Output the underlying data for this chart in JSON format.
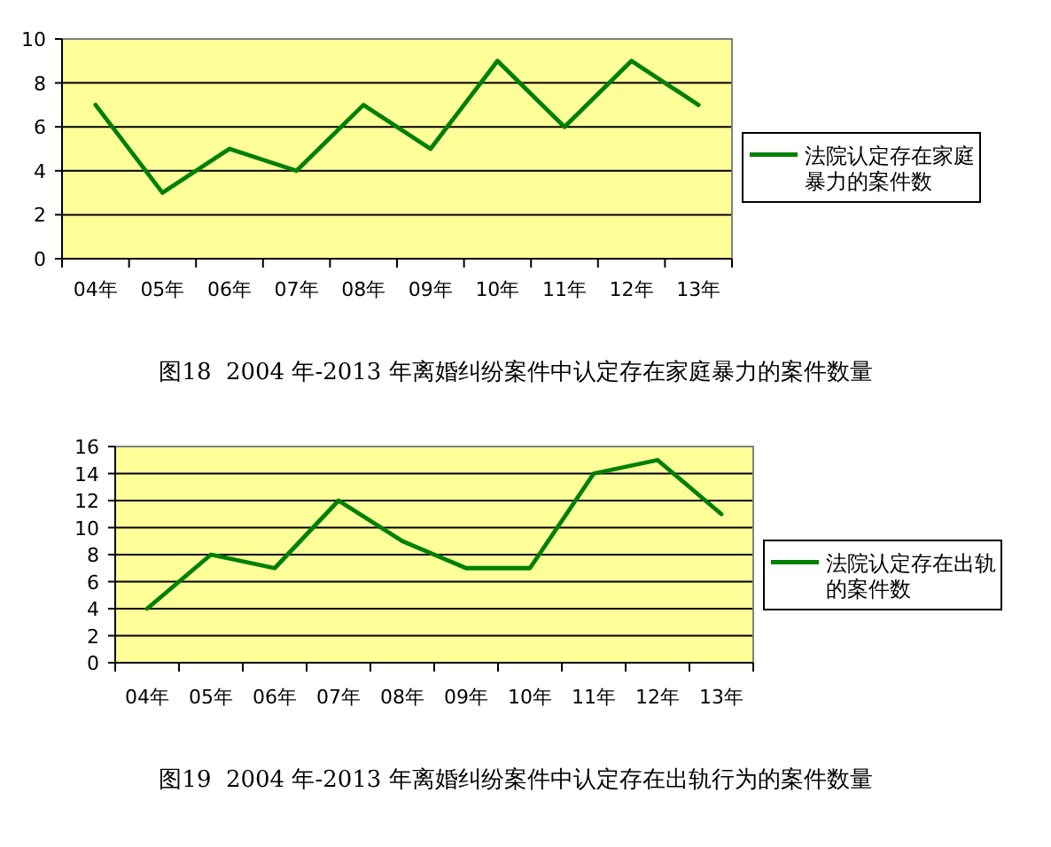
{
  "chart_data": [
    {
      "type": "line",
      "title": "图18  2004 年-2013 年离婚纠纷案件中认定存在家庭暴力的案件数量",
      "categories": [
        "04年",
        "05年",
        "06年",
        "07年",
        "08年",
        "09年",
        "10年",
        "11年",
        "12年",
        "13年"
      ],
      "series": [
        {
          "name": "法院认定存在家庭暴力的案件数",
          "color": "#008000",
          "values": [
            7,
            3,
            5,
            4,
            7,
            5,
            9,
            6,
            9,
            7
          ]
        }
      ],
      "ylim": [
        0,
        10
      ],
      "yticks": [
        0,
        2,
        4,
        6,
        8,
        10
      ],
      "grid": "y",
      "legend": "right"
    },
    {
      "type": "line",
      "title": "图19  2004 年-2013 年离婚纠纷案件中认定存在出轨行为的案件数量",
      "categories": [
        "04年",
        "05年",
        "06年",
        "07年",
        "08年",
        "09年",
        "10年",
        "11年",
        "12年",
        "13年"
      ],
      "series": [
        {
          "name": "法院认定存在出轨的案件数",
          "color": "#008000",
          "values": [
            4,
            8,
            7,
            12,
            9,
            7,
            7,
            14,
            15,
            11
          ]
        }
      ],
      "ylim": [
        0,
        16
      ],
      "yticks": [
        0,
        2,
        4,
        6,
        8,
        10,
        12,
        14,
        16
      ],
      "grid": "y",
      "legend": "right"
    }
  ]
}
